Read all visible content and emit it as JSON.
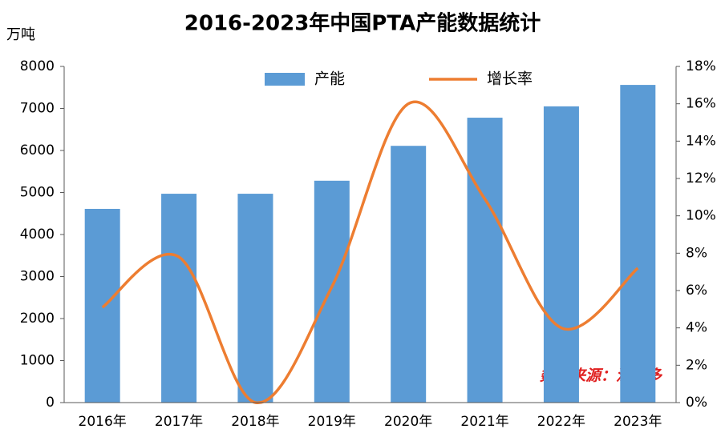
{
  "chart_data": {
    "type": "bar_line",
    "title": "2016-2023年中国PTA产能数据统计",
    "y_label": "万吨",
    "categories": [
      "2016年",
      "2017年",
      "2018年",
      "2019年",
      "2020年",
      "2021年",
      "2022年",
      "2023年"
    ],
    "series": [
      {
        "name": "产能",
        "color": "#5b9bd5",
        "type": "bar",
        "values": [
          4610,
          4970,
          4970,
          5280,
          6110,
          6780,
          7050,
          7560
        ]
      },
      {
        "name": "增长率",
        "color": "#ed7d31",
        "type": "line",
        "axis": "y2",
        "values": [
          5.1,
          7.8,
          0,
          6.2,
          16.0,
          10.9,
          4.0,
          7.2
        ]
      }
    ],
    "ylim": [
      0,
      8000
    ],
    "yticks": [
      0,
      1000,
      2000,
      3000,
      4000,
      5000,
      6000,
      7000,
      8000
    ],
    "y2lim": [
      0,
      18
    ],
    "y2ticks": [
      {
        "value": 0,
        "label": "0%"
      },
      {
        "value": 2,
        "label": "2%"
      },
      {
        "value": 4,
        "label": "4%"
      },
      {
        "value": 6,
        "label": "6%"
      },
      {
        "value": 8,
        "label": "8%"
      },
      {
        "value": 10,
        "label": "10%"
      },
      {
        "value": 12,
        "label": "12%"
      },
      {
        "value": 14,
        "label": "14%"
      },
      {
        "value": 16,
        "label": "16%"
      },
      {
        "value": 18,
        "label": "18%"
      }
    ],
    "annotation": "数据来源：涂多多"
  }
}
